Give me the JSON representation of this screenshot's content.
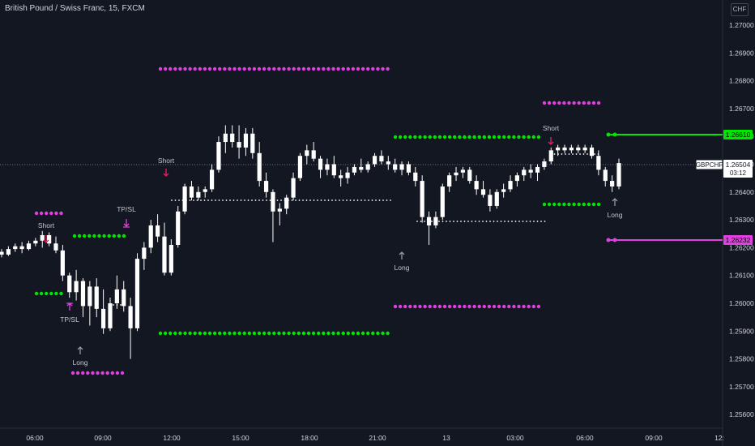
{
  "title": "British Pound / Swiss Franc, 15, FXCM",
  "currency_button": "CHF",
  "colors": {
    "background": "#131722",
    "candle": "#ffffff",
    "green": "#00e600",
    "magenta": "#e040e0",
    "arrow_short": "#e91e63",
    "grid_text": "#d1d4dc"
  },
  "chart_data": {
    "type": "candlestick",
    "symbol": "GBPCHF",
    "ylim": [
      1.2553,
      1.272
    ],
    "y_ticks": [
      "1.27000",
      "1.26900",
      "1.26800",
      "1.26700",
      "1.26600",
      "1.26500",
      "1.26400",
      "1.26300",
      "1.26200",
      "1.26100",
      "1.26000",
      "1.25900",
      "1.25800",
      "1.25700",
      "1.25600"
    ],
    "x_ticks": [
      "06:00",
      "09:00",
      "12:00",
      "15:00",
      "18:00",
      "21:00",
      "13",
      "03:00",
      "06:00",
      "09:00",
      "12:"
    ],
    "current_price_label": "GBPCHF",
    "current_price": "1.26504",
    "countdown": "03:12",
    "upper_level_label": "1.26610",
    "lower_level_label": "1.26232",
    "signals": [
      {
        "label": "Short",
        "time": "07:00",
        "price": 1.2625
      },
      {
        "label": "TP/SL",
        "time": "10:30",
        "price": 1.263
      },
      {
        "label": "TP/SL",
        "time": "08:15",
        "price": 1.26
      },
      {
        "label": "Long",
        "time": "08:30",
        "price": 1.258
      },
      {
        "label": "Short",
        "time": "11:45",
        "price": 1.265
      },
      {
        "label": "Long",
        "time": "22:45",
        "price": 1.2618
      },
      {
        "label": "Short",
        "time": "04:45",
        "price": 1.266
      },
      {
        "label": "Long",
        "time": "07:15",
        "price": 1.263
      }
    ],
    "candles": [
      [
        1.26185,
        1.26195,
        1.26165,
        1.26175
      ],
      [
        1.26175,
        1.26205,
        1.2617,
        1.26195
      ],
      [
        1.26195,
        1.26215,
        1.26185,
        1.26205
      ],
      [
        1.26205,
        1.2622,
        1.2618,
        1.26195
      ],
      [
        1.26195,
        1.26225,
        1.2619,
        1.26215
      ],
      [
        1.26215,
        1.26235,
        1.26205,
        1.26225
      ],
      [
        1.26225,
        1.2626,
        1.262,
        1.26245
      ],
      [
        1.26245,
        1.26255,
        1.26205,
        1.26215
      ],
      [
        1.26215,
        1.2624,
        1.2618,
        1.2619
      ],
      [
        1.2619,
        1.2621,
        1.2608,
        1.261
      ],
      [
        1.261,
        1.2611,
        1.2602,
        1.2604
      ],
      [
        1.2604,
        1.2612,
        1.2601,
        1.2608
      ],
      [
        1.2608,
        1.2609,
        1.2595,
        1.2599
      ],
      [
        1.2599,
        1.2608,
        1.2592,
        1.2606
      ],
      [
        1.2606,
        1.2609,
        1.2595,
        1.2598
      ],
      [
        1.2598,
        1.2605,
        1.2589,
        1.2591
      ],
      [
        1.2591,
        1.2602,
        1.259,
        1.26
      ],
      [
        1.26,
        1.261,
        1.2598,
        1.2605
      ],
      [
        1.2605,
        1.2608,
        1.2597,
        1.2599
      ],
      [
        1.2599,
        1.2602,
        1.258,
        1.2591
      ],
      [
        1.2591,
        1.2618,
        1.259,
        1.2616
      ],
      [
        1.2616,
        1.2622,
        1.2612,
        1.262
      ],
      [
        1.262,
        1.263,
        1.2618,
        1.2628
      ],
      [
        1.2628,
        1.2632,
        1.2622,
        1.2624
      ],
      [
        1.2624,
        1.2629,
        1.261,
        1.2611
      ],
      [
        1.2611,
        1.2623,
        1.261,
        1.2621
      ],
      [
        1.2621,
        1.2635,
        1.262,
        1.2633
      ],
      [
        1.2633,
        1.2643,
        1.2632,
        1.2642
      ],
      [
        1.2642,
        1.2644,
        1.2637,
        1.2638
      ],
      [
        1.2638,
        1.2642,
        1.2637,
        1.264
      ],
      [
        1.264,
        1.2642,
        1.2638,
        1.2641
      ],
      [
        1.2641,
        1.265,
        1.264,
        1.2648
      ],
      [
        1.2648,
        1.266,
        1.2647,
        1.2658
      ],
      [
        1.2658,
        1.2664,
        1.2654,
        1.2661
      ],
      [
        1.2661,
        1.2664,
        1.2656,
        1.2658
      ],
      [
        1.2658,
        1.2664,
        1.2652,
        1.2656
      ],
      [
        1.2656,
        1.2663,
        1.2653,
        1.2661
      ],
      [
        1.2661,
        1.2663,
        1.2652,
        1.2654
      ],
      [
        1.2654,
        1.2658,
        1.2642,
        1.2644
      ],
      [
        1.2644,
        1.2647,
        1.2638,
        1.264
      ],
      [
        1.264,
        1.2641,
        1.2622,
        1.2633
      ],
      [
        1.2633,
        1.2636,
        1.2628,
        1.2634
      ],
      [
        1.2634,
        1.2639,
        1.2632,
        1.2638
      ],
      [
        1.2638,
        1.2647,
        1.2637,
        1.2645
      ],
      [
        1.2645,
        1.2654,
        1.2644,
        1.2653
      ],
      [
        1.2653,
        1.2657,
        1.265,
        1.2655
      ],
      [
        1.2655,
        1.2658,
        1.2651,
        1.2652
      ],
      [
        1.2652,
        1.2653,
        1.2645,
        1.2648
      ],
      [
        1.2648,
        1.2652,
        1.2646,
        1.265
      ],
      [
        1.265,
        1.2653,
        1.2645,
        1.2646
      ],
      [
        1.2646,
        1.2648,
        1.2642,
        1.2645
      ],
      [
        1.2645,
        1.2649,
        1.2643,
        1.2647
      ],
      [
        1.2647,
        1.265,
        1.2646,
        1.2649
      ],
      [
        1.2649,
        1.2652,
        1.2647,
        1.2648
      ],
      [
        1.2648,
        1.2651,
        1.2647,
        1.265
      ],
      [
        1.265,
        1.2654,
        1.2649,
        1.2653
      ],
      [
        1.2653,
        1.2655,
        1.265,
        1.2651
      ],
      [
        1.2651,
        1.2653,
        1.2648,
        1.265
      ],
      [
        1.265,
        1.2652,
        1.2647,
        1.2648
      ],
      [
        1.2648,
        1.2651,
        1.2646,
        1.265
      ],
      [
        1.265,
        1.2651,
        1.2646,
        1.2647
      ],
      [
        1.2647,
        1.2649,
        1.2642,
        1.2644
      ],
      [
        1.2644,
        1.2646,
        1.2629,
        1.2631
      ],
      [
        1.2631,
        1.2633,
        1.2621,
        1.2628
      ],
      [
        1.2628,
        1.2633,
        1.2627,
        1.2631
      ],
      [
        1.2631,
        1.2643,
        1.263,
        1.2642
      ],
      [
        1.2642,
        1.2647,
        1.264,
        1.2646
      ],
      [
        1.2646,
        1.2649,
        1.2644,
        1.2647
      ],
      [
        1.2647,
        1.2649,
        1.2645,
        1.2648
      ],
      [
        1.2648,
        1.2649,
        1.2643,
        1.2644
      ],
      [
        1.2644,
        1.2646,
        1.2639,
        1.2641
      ],
      [
        1.2641,
        1.2644,
        1.2638,
        1.2639
      ],
      [
        1.2639,
        1.2641,
        1.2633,
        1.2635
      ],
      [
        1.2635,
        1.2641,
        1.2634,
        1.264
      ],
      [
        1.264,
        1.2643,
        1.2638,
        1.2641
      ],
      [
        1.2641,
        1.2646,
        1.264,
        1.2644
      ],
      [
        1.2644,
        1.2647,
        1.2642,
        1.2646
      ],
      [
        1.2646,
        1.2649,
        1.2644,
        1.2648
      ],
      [
        1.2648,
        1.265,
        1.2645,
        1.2647
      ],
      [
        1.2647,
        1.265,
        1.2644,
        1.2649
      ],
      [
        1.2649,
        1.2652,
        1.2648,
        1.2651
      ],
      [
        1.2651,
        1.2656,
        1.265,
        1.2655
      ],
      [
        1.2655,
        1.2657,
        1.2653,
        1.2656
      ],
      [
        1.2656,
        1.2657,
        1.2654,
        1.2655
      ],
      [
        1.2655,
        1.2657,
        1.2654,
        1.2656
      ],
      [
        1.2656,
        1.2657,
        1.2654,
        1.2655
      ],
      [
        1.2655,
        1.2657,
        1.2654,
        1.2656
      ],
      [
        1.2656,
        1.2657,
        1.2652,
        1.2653
      ],
      [
        1.2653,
        1.2655,
        1.2646,
        1.2648
      ],
      [
        1.2648,
        1.2649,
        1.2642,
        1.2644
      ],
      [
        1.2644,
        1.2646,
        1.264,
        1.2642
      ],
      [
        1.2642,
        1.2652,
        1.2641,
        1.26504
      ]
    ]
  }
}
